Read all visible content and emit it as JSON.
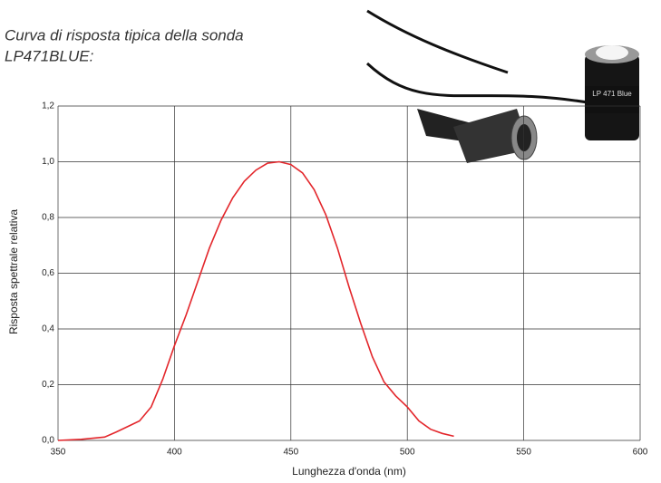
{
  "chart_data": {
    "type": "line",
    "title": [
      "Curva di risposta tipica della sonda",
      "LP471BLUE:"
    ],
    "xlabel": "Lunghezza d'onda (nm)",
    "ylabel": "Risposta spettrale relativa",
    "photo_label": "LP 471 Blue",
    "x": [
      350,
      360,
      370,
      375,
      380,
      385,
      390,
      395,
      400,
      405,
      410,
      415,
      420,
      425,
      430,
      435,
      440,
      445,
      450,
      455,
      460,
      465,
      470,
      475,
      480,
      485,
      490,
      495,
      500,
      505,
      510,
      515,
      520
    ],
    "series": [
      {
        "color": "#e3262b",
        "values": [
          0.0,
          0.004,
          0.012,
          0.03,
          0.05,
          0.07,
          0.12,
          0.22,
          0.34,
          0.45,
          0.57,
          0.69,
          0.79,
          0.87,
          0.93,
          0.97,
          0.995,
          1.0,
          0.99,
          0.96,
          0.9,
          0.81,
          0.69,
          0.55,
          0.42,
          0.3,
          0.21,
          0.16,
          0.12,
          0.07,
          0.04,
          0.025,
          0.015
        ]
      }
    ],
    "xlim": [
      350,
      600
    ],
    "xticks": [
      350,
      400,
      450,
      500,
      550,
      600
    ],
    "ylim": [
      0,
      1.2
    ],
    "yticks": [
      {
        "value": 0,
        "label": "0,0"
      },
      {
        "value": 0.2,
        "label": "0,2"
      },
      {
        "value": 0.4,
        "label": "0,4"
      },
      {
        "value": 0.6,
        "label": "0,6"
      },
      {
        "value": 0.8,
        "label": "0,8"
      },
      {
        "value": 1.0,
        "label": "1,0"
      },
      {
        "value": 1.2,
        "label": "1,2"
      }
    ],
    "grid": true
  }
}
